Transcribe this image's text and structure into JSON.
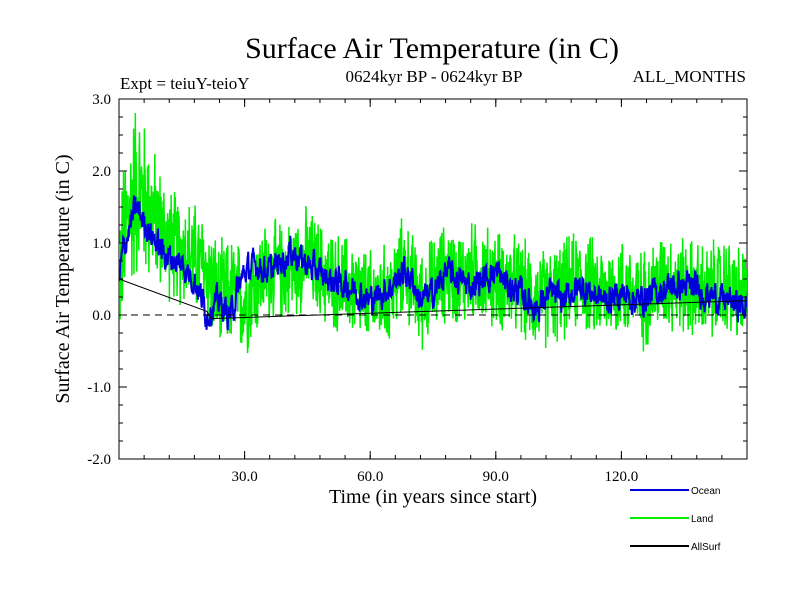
{
  "chart_data": {
    "type": "line",
    "title": "Surface Air Temperature (in C)",
    "subtitle_left": "Expt = teiuY-teioY",
    "subtitle_center": "0624kyr BP - 0624kyr BP",
    "subtitle_right": "ALL_MONTHS",
    "xlabel": "Time (in years since start)",
    "ylabel": "Surface Air Temperature (in C)",
    "xlim": [
      0,
      150
    ],
    "ylim": [
      -2.0,
      3.0
    ],
    "x_ticks": [
      30,
      60,
      90,
      120
    ],
    "x_tick_labels": [
      "30.0",
      "60.0",
      "90.0",
      "120.0"
    ],
    "y_ticks": [
      -2,
      -1,
      0,
      1,
      2,
      3
    ],
    "y_tick_labels": [
      "-2.0",
      "-1.0",
      "0.0",
      "1.0",
      "2.0",
      "3.0"
    ],
    "zero_line": "dashed",
    "series": [
      {
        "name": "Land",
        "color": "#00ee00",
        "x": [
          0,
          2,
          4,
          6,
          8,
          10,
          12,
          15,
          18,
          21,
          24,
          27,
          30,
          35,
          40,
          45,
          50,
          55,
          60,
          65,
          68,
          72,
          75,
          78,
          81,
          85,
          90,
          95,
          100,
          105,
          110,
          115,
          120,
          125,
          130,
          135,
          140,
          145,
          150
        ],
        "values": [
          0.6,
          1.3,
          1.8,
          1.6,
          1.4,
          1.2,
          1.0,
          0.9,
          0.8,
          0.6,
          0.2,
          0.3,
          0.2,
          0.6,
          0.6,
          0.8,
          0.5,
          0.4,
          0.2,
          0.3,
          0.7,
          0.2,
          0.4,
          0.6,
          0.5,
          0.6,
          0.5,
          0.4,
          0.2,
          0.3,
          0.5,
          0.3,
          0.4,
          0.2,
          0.5,
          0.4,
          0.3,
          0.4,
          0.2
        ],
        "spread": [
          1.2,
          1.4,
          1.5,
          1.3,
          1.1,
          1.0,
          0.9,
          0.9,
          0.9,
          0.9,
          0.9,
          0.9,
          0.9,
          0.8,
          0.8,
          0.8,
          0.8,
          0.8,
          0.8,
          0.8,
          0.8,
          0.8,
          0.8,
          0.8,
          0.8,
          0.8,
          0.8,
          0.8,
          0.8,
          0.8,
          0.8,
          0.8,
          0.8,
          0.8,
          0.8,
          0.8,
          0.8,
          0.8,
          0.8
        ]
      },
      {
        "name": "Ocean",
        "color": "#0000dd",
        "x": [
          0,
          1,
          2,
          3,
          4,
          6,
          8,
          10,
          12,
          15,
          18,
          20,
          21,
          22,
          24,
          26,
          27,
          28,
          30,
          33,
          36,
          40,
          41,
          45,
          50,
          55,
          60,
          65,
          68,
          70,
          72,
          75,
          78,
          81,
          84,
          87,
          90,
          93,
          96,
          100,
          103,
          106,
          110,
          113,
          116,
          120,
          124,
          128,
          132,
          136,
          140,
          145,
          150
        ],
        "values": [
          0.5,
          0.9,
          1.1,
          1.3,
          1.5,
          1.3,
          1.1,
          0.9,
          0.8,
          0.7,
          0.5,
          0.2,
          0.0,
          0.1,
          0.2,
          0.0,
          0.05,
          0.3,
          0.6,
          0.7,
          0.6,
          0.8,
          0.9,
          0.7,
          0.5,
          0.4,
          0.2,
          0.4,
          0.6,
          0.5,
          0.2,
          0.3,
          0.6,
          0.5,
          0.4,
          0.5,
          0.6,
          0.4,
          0.3,
          0.1,
          0.3,
          0.2,
          0.4,
          0.3,
          0.2,
          0.3,
          0.2,
          0.3,
          0.4,
          0.4,
          0.3,
          0.2,
          0.1
        ],
        "spread": [
          0.15,
          0.15,
          0.15,
          0.15,
          0.15,
          0.15,
          0.15,
          0.15,
          0.15,
          0.15,
          0.15,
          0.15,
          0.15,
          0.15,
          0.15,
          0.15,
          0.15,
          0.15,
          0.15,
          0.15,
          0.15,
          0.15,
          0.15,
          0.15,
          0.15,
          0.15,
          0.15,
          0.15,
          0.15,
          0.15,
          0.15,
          0.15,
          0.15,
          0.15,
          0.15,
          0.15,
          0.15,
          0.15,
          0.15,
          0.15,
          0.15,
          0.15,
          0.15,
          0.15,
          0.15,
          0.15,
          0.15,
          0.15,
          0.15,
          0.15,
          0.15,
          0.15,
          0.15
        ]
      },
      {
        "name": "AllSurf",
        "color": "#000000",
        "x": [
          0,
          21,
          22,
          150
        ],
        "values": [
          0.5,
          0.05,
          -0.05,
          0.2
        ]
      }
    ],
    "legend": [
      {
        "name": "Ocean",
        "color": "#0000dd"
      },
      {
        "name": "Land",
        "color": "#00ee00"
      },
      {
        "name": "AllSurf",
        "color": "#000000"
      }
    ],
    "legend_position": "bottom-right"
  }
}
